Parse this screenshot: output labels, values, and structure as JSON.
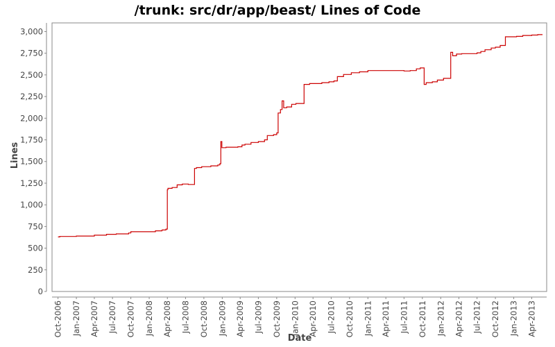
{
  "chart_data": {
    "type": "line",
    "title": "/trunk: src/dr/app/beast/ Lines of Code",
    "xlabel": "Date",
    "ylabel": "Lines",
    "ylim": [
      0,
      3100
    ],
    "xlim": [
      "2006-09-01",
      "2013-06-15"
    ],
    "grid": false,
    "legend": "none",
    "line_color": "#cc0000",
    "y_ticks": [
      0,
      250,
      500,
      750,
      1000,
      1250,
      1500,
      1750,
      2000,
      2250,
      2500,
      2750,
      3000
    ],
    "y_tick_labels": [
      "0",
      "250",
      "500",
      "750",
      "1,000",
      "1,250",
      "1,500",
      "1,750",
      "2,000",
      "2,250",
      "2,500",
      "2,750",
      "3,000"
    ],
    "x_ticks": [
      "2006-10-01",
      "2007-01-01",
      "2007-04-01",
      "2007-07-01",
      "2007-10-01",
      "2008-01-01",
      "2008-04-01",
      "2008-07-01",
      "2008-10-01",
      "2009-01-01",
      "2009-04-01",
      "2009-07-01",
      "2009-10-01",
      "2010-01-01",
      "2010-04-01",
      "2010-07-01",
      "2010-10-01",
      "2011-01-01",
      "2011-04-01",
      "2011-07-01",
      "2011-10-01",
      "2012-01-01",
      "2012-04-01",
      "2012-07-01",
      "2012-10-01",
      "2013-01-01",
      "2013-04-01"
    ],
    "x_tick_labels": [
      "Oct-2006",
      "Jan-2007",
      "Apr-2007",
      "Jul-2007",
      "Oct-2007",
      "Jan-2008",
      "Apr-2008",
      "Jul-2008",
      "Oct-2008",
      "Jan-2009",
      "Apr-2009",
      "Jul-2009",
      "Oct-2009",
      "Jan-2010",
      "Apr-2010",
      "Jul-2010",
      "Oct-2010",
      "Jan-2011",
      "Apr-2011",
      "Jul-2011",
      "Oct-2011",
      "Jan-2012",
      "Apr-2012",
      "Jul-2012",
      "Oct-2012",
      "Jan-2013",
      "Apr-2013"
    ],
    "series": [
      {
        "step": true,
        "points": [
          [
            "2006-10-01",
            630
          ],
          [
            "2006-10-10",
            635
          ],
          [
            "2007-01-01",
            640
          ],
          [
            "2007-04-01",
            650
          ],
          [
            "2007-06-01",
            660
          ],
          [
            "2007-07-20",
            665
          ],
          [
            "2007-09-20",
            675
          ],
          [
            "2007-10-01",
            690
          ],
          [
            "2008-02-01",
            700
          ],
          [
            "2008-03-05",
            710
          ],
          [
            "2008-03-25",
            720
          ],
          [
            "2008-04-01",
            1175
          ],
          [
            "2008-04-04",
            1190
          ],
          [
            "2008-04-25",
            1200
          ],
          [
            "2008-05-20",
            1230
          ],
          [
            "2008-06-15",
            1240
          ],
          [
            "2008-07-15",
            1235
          ],
          [
            "2008-08-15",
            1420
          ],
          [
            "2008-08-25",
            1430
          ],
          [
            "2008-09-20",
            1440
          ],
          [
            "2008-11-05",
            1450
          ],
          [
            "2008-12-10",
            1460
          ],
          [
            "2008-12-20",
            1475
          ],
          [
            "2008-12-25",
            1730
          ],
          [
            "2008-12-30",
            1660
          ],
          [
            "2009-01-20",
            1665
          ],
          [
            "2009-03-20",
            1670
          ],
          [
            "2009-04-10",
            1690
          ],
          [
            "2009-04-25",
            1700
          ],
          [
            "2009-05-25",
            1720
          ],
          [
            "2009-07-01",
            1730
          ],
          [
            "2009-08-01",
            1750
          ],
          [
            "2009-08-15",
            1800
          ],
          [
            "2009-09-15",
            1810
          ],
          [
            "2009-10-01",
            1830
          ],
          [
            "2009-10-08",
            2060
          ],
          [
            "2009-10-20",
            2100
          ],
          [
            "2009-10-28",
            2200
          ],
          [
            "2009-11-05",
            2120
          ],
          [
            "2009-11-20",
            2130
          ],
          [
            "2009-12-15",
            2160
          ],
          [
            "2010-01-05",
            2170
          ],
          [
            "2010-02-15",
            2390
          ],
          [
            "2010-03-15",
            2400
          ],
          [
            "2010-05-15",
            2410
          ],
          [
            "2010-06-20",
            2420
          ],
          [
            "2010-07-15",
            2430
          ],
          [
            "2010-08-01",
            2480
          ],
          [
            "2010-09-01",
            2505
          ],
          [
            "2010-10-10",
            2525
          ],
          [
            "2010-11-20",
            2535
          ],
          [
            "2011-01-01",
            2550
          ],
          [
            "2011-07-01",
            2545
          ],
          [
            "2011-08-01",
            2550
          ],
          [
            "2011-09-01",
            2570
          ],
          [
            "2011-09-20",
            2580
          ],
          [
            "2011-10-10",
            2390
          ],
          [
            "2011-10-20",
            2410
          ],
          [
            "2011-11-20",
            2420
          ],
          [
            "2011-12-15",
            2440
          ],
          [
            "2012-01-15",
            2460
          ],
          [
            "2012-02-20",
            2760
          ],
          [
            "2012-03-01",
            2720
          ],
          [
            "2012-03-20",
            2740
          ],
          [
            "2012-04-15",
            2745
          ],
          [
            "2012-07-01",
            2755
          ],
          [
            "2012-07-20",
            2770
          ],
          [
            "2012-08-10",
            2790
          ],
          [
            "2012-09-10",
            2810
          ],
          [
            "2012-10-01",
            2820
          ],
          [
            "2012-10-25",
            2840
          ],
          [
            "2012-11-20",
            2940
          ],
          [
            "2013-01-15",
            2945
          ],
          [
            "2013-02-15",
            2955
          ],
          [
            "2013-04-01",
            2960
          ],
          [
            "2013-05-01",
            2965
          ],
          [
            "2013-05-25",
            2965
          ]
        ]
      }
    ]
  }
}
